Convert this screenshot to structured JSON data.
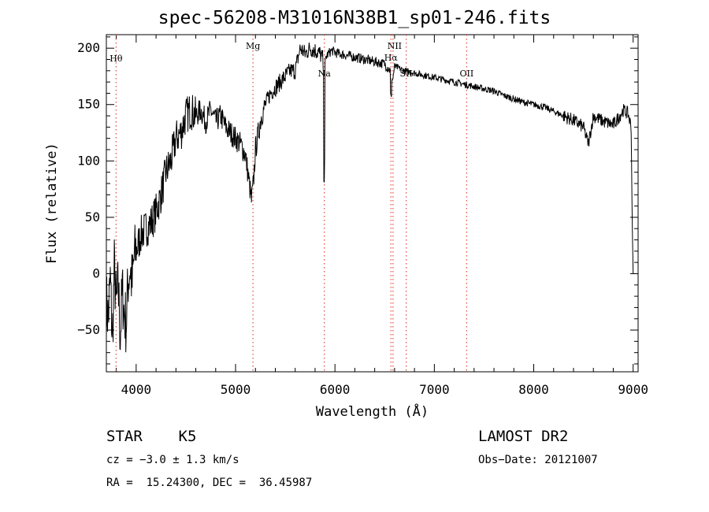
{
  "chart_data": {
    "type": "line",
    "title": "spec-56208-M31016N38B1_sp01-246.fits",
    "xlabel": "Wavelength (Å)",
    "ylabel": "Flux (relative)",
    "xlim": [
      3700,
      9050
    ],
    "ylim": [
      -87,
      212
    ],
    "x_ticks": [
      4000,
      5000,
      6000,
      7000,
      8000,
      9000
    ],
    "x_tick_labels": [
      "4000",
      "5000",
      "6000",
      "7000",
      "8000",
      "9000"
    ],
    "y_ticks": [
      -50,
      0,
      50,
      100,
      150,
      200
    ],
    "y_tick_labels": [
      "−50",
      "0",
      "50",
      "100",
      "150",
      "200"
    ],
    "spectrum_x": [
      3700,
      3720,
      3740,
      3760,
      3780,
      3800,
      3820,
      3840,
      3860,
      3880,
      3900,
      3920,
      3940,
      3960,
      3980,
      4000,
      4050,
      4100,
      4150,
      4200,
      4250,
      4300,
      4350,
      4400,
      4450,
      4500,
      4550,
      4600,
      4650,
      4700,
      4750,
      4800,
      4850,
      4900,
      4950,
      5000,
      5050,
      5100,
      5130,
      5160,
      5180,
      5200,
      5230,
      5260,
      5300,
      5350,
      5400,
      5450,
      5500,
      5550,
      5600,
      5650,
      5700,
      5750,
      5800,
      5850,
      5880,
      5890,
      5900,
      5910,
      5930,
      5970,
      6000,
      6100,
      6200,
      6300,
      6400,
      6500,
      6560,
      6580,
      6600,
      6700,
      6800,
      6900,
      7000,
      7100,
      7200,
      7300,
      7400,
      7500,
      7600,
      7700,
      7800,
      7900,
      8000,
      8100,
      8200,
      8300,
      8400,
      8500,
      8550,
      8600,
      8700,
      8800,
      8850,
      8900,
      8950,
      8980,
      8990,
      9000
    ],
    "spectrum_y": [
      -25,
      -40,
      -5,
      -60,
      5,
      -30,
      -10,
      -55,
      -15,
      -35,
      -45,
      -5,
      5,
      -10,
      15,
      20,
      35,
      40,
      45,
      55,
      70,
      90,
      100,
      120,
      125,
      140,
      145,
      140,
      145,
      135,
      145,
      135,
      140,
      130,
      125,
      120,
      115,
      105,
      85,
      65,
      80,
      110,
      125,
      140,
      150,
      160,
      165,
      170,
      175,
      180,
      180,
      200,
      195,
      200,
      198,
      195,
      190,
      130,
      185,
      192,
      195,
      198,
      196,
      194,
      192,
      190,
      188,
      186,
      180,
      172,
      184,
      180,
      178,
      176,
      174,
      172,
      170,
      168,
      166,
      164,
      162,
      158,
      155,
      152,
      150,
      148,
      144,
      140,
      136,
      130,
      115,
      140,
      135,
      132,
      138,
      145,
      142,
      130,
      50,
      0
    ],
    "spectral_lines": [
      {
        "name": "Hθ",
        "wavelength": 3798
      },
      {
        "name": "Mg",
        "wavelength": 5175
      },
      {
        "name": "Na",
        "wavelength": 5893
      },
      {
        "name": "Hα",
        "wavelength": 6563
      },
      {
        "name": "NII",
        "wavelength": 6584
      },
      {
        "name": "SII",
        "wavelength": 6717
      },
      {
        "name": "OII",
        "wavelength": 7325
      }
    ]
  },
  "info": {
    "class_label": "STAR    K5",
    "survey_label": "LAMOST DR2",
    "cz_label": "cz = −3.0 ± 1.3 km/s",
    "obs_date_label": "Obs−Date: 20121007",
    "coords_label": "RA =  15.24300, DEC =  36.45987"
  }
}
